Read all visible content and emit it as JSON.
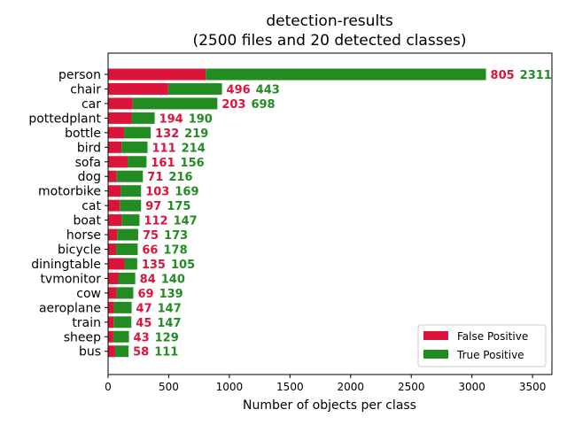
{
  "chart_data": {
    "type": "bar",
    "orientation": "horizontal",
    "stacked": true,
    "title": "detection-results",
    "subtitle": "(2500 files and 20 detected classes)",
    "xlabel": "Number of objects per class",
    "ylabel": "",
    "xlim": [
      0,
      3660
    ],
    "xticks": [
      0,
      500,
      1000,
      1500,
      2000,
      2500,
      3000,
      3500
    ],
    "grid": false,
    "legend_position": "lower-right",
    "categories": [
      "person",
      "chair",
      "car",
      "pottedplant",
      "bottle",
      "bird",
      "sofa",
      "dog",
      "motorbike",
      "cat",
      "boat",
      "horse",
      "bicycle",
      "diningtable",
      "tvmonitor",
      "cow",
      "aeroplane",
      "train",
      "sheep",
      "bus"
    ],
    "series": [
      {
        "name": "False Positive",
        "color": "#dc143c",
        "values": [
          805,
          496,
          203,
          194,
          132,
          111,
          161,
          71,
          103,
          97,
          112,
          75,
          66,
          135,
          84,
          69,
          47,
          45,
          43,
          58
        ]
      },
      {
        "name": "True Positive",
        "color": "#228b22",
        "values": [
          2311,
          443,
          698,
          190,
          219,
          214,
          156,
          216,
          169,
          175,
          147,
          173,
          178,
          105,
          140,
          139,
          147,
          147,
          129,
          111
        ]
      }
    ]
  }
}
